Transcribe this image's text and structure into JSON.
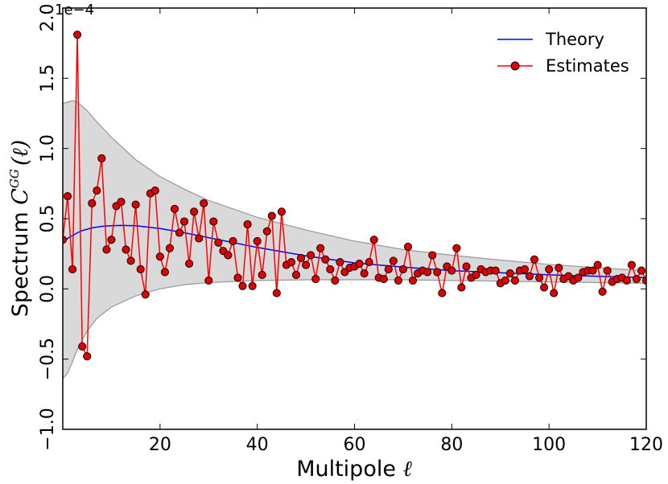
{
  "chart_data": {
    "type": "line",
    "title": "",
    "xlabel": "Multipole ℓ",
    "xlabel_text": "Multipole",
    "xlabel_symbol": "ℓ",
    "ylabel": "Spectrum C^{GG}(ℓ)",
    "ylabel_text": "Spectrum",
    "ylabel_symbol": "C",
    "ylabel_superscript": "GG",
    "ylabel_arg": "(ℓ)",
    "y_offset_label": "1e−4",
    "xlim": [
      0,
      120
    ],
    "ylim": [
      -1.0,
      2.0
    ],
    "xticks": [
      20,
      40,
      60,
      80,
      100,
      120
    ],
    "xtick_labels": [
      "20",
      "40",
      "60",
      "80",
      "100",
      "120"
    ],
    "yticks": [
      -1.0,
      -0.5,
      0.0,
      0.5,
      1.0,
      1.5,
      2.0
    ],
    "ytick_labels": [
      "−1.0",
      "−0.5",
      "0.0",
      "0.5",
      "1.0",
      "1.5",
      "2.0"
    ],
    "legend": {
      "location": "top-right",
      "entries": [
        "Theory",
        "Estimates"
      ]
    },
    "theory": {
      "name": "Theory",
      "color": "#0000ff",
      "x": [
        0,
        1,
        2,
        3,
        4,
        5,
        6,
        7,
        8,
        10,
        12,
        15,
        20,
        25,
        30,
        40,
        50,
        60,
        70,
        80,
        90,
        100,
        110,
        120
      ],
      "y": [
        0.33,
        0.36,
        0.38,
        0.4,
        0.415,
        0.425,
        0.435,
        0.44,
        0.445,
        0.45,
        0.452,
        0.45,
        0.43,
        0.4,
        0.365,
        0.295,
        0.235,
        0.185,
        0.155,
        0.13,
        0.115,
        0.1,
        0.09,
        0.08
      ]
    },
    "band": {
      "name": "uncertainty band",
      "fill": "#d9d9d9",
      "edge": "#999999",
      "x": [
        0,
        1,
        2,
        3,
        5,
        7,
        10,
        15,
        20,
        25,
        30,
        40,
        50,
        60,
        70,
        80,
        90,
        100,
        110,
        120
      ],
      "upper": [
        1.32,
        1.33,
        1.34,
        1.33,
        1.27,
        1.19,
        1.08,
        0.92,
        0.8,
        0.71,
        0.63,
        0.51,
        0.42,
        0.34,
        0.28,
        0.24,
        0.205,
        0.175,
        0.15,
        0.13
      ],
      "lower": [
        -0.64,
        -0.6,
        -0.52,
        -0.43,
        -0.3,
        -0.21,
        -0.13,
        -0.05,
        0.0,
        0.03,
        0.045,
        0.06,
        0.065,
        0.065,
        0.065,
        0.06,
        0.055,
        0.05,
        0.045,
        0.04
      ]
    },
    "estimates": {
      "name": "Estimates",
      "color": "#ff0000",
      "marker_fill": "#dd0000",
      "x": [
        0,
        1,
        2,
        3,
        4,
        5,
        6,
        7,
        8,
        9,
        10,
        11,
        12,
        13,
        14,
        15,
        16,
        17,
        18,
        19,
        20,
        21,
        22,
        23,
        24,
        25,
        26,
        27,
        28,
        29,
        30,
        31,
        32,
        33,
        34,
        35,
        36,
        37,
        38,
        39,
        40,
        41,
        42,
        43,
        44,
        45,
        46,
        47,
        48,
        49,
        50,
        51,
        52,
        53,
        54,
        55,
        56,
        57,
        58,
        59,
        60,
        61,
        62,
        63,
        64,
        65,
        66,
        67,
        68,
        69,
        70,
        71,
        72,
        73,
        74,
        75,
        76,
        77,
        78,
        79,
        80,
        81,
        82,
        83,
        84,
        85,
        86,
        87,
        88,
        89,
        90,
        91,
        92,
        93,
        94,
        95,
        96,
        97,
        98,
        99,
        100,
        101,
        102,
        103,
        104,
        105,
        106,
        107,
        108,
        109,
        110,
        111,
        112,
        113,
        114,
        115,
        116,
        117,
        118,
        119,
        120
      ],
      "y": [
        0.35,
        0.66,
        0.14,
        1.81,
        -0.41,
        -0.48,
        0.61,
        0.7,
        0.93,
        0.28,
        0.35,
        0.59,
        0.62,
        0.28,
        0.2,
        0.6,
        0.14,
        -0.04,
        0.68,
        0.7,
        0.23,
        0.12,
        0.29,
        0.57,
        0.4,
        0.48,
        0.18,
        0.55,
        0.36,
        0.61,
        0.06,
        0.48,
        0.33,
        0.27,
        0.24,
        0.34,
        0.08,
        0.02,
        0.46,
        0.02,
        0.34,
        0.1,
        0.41,
        0.52,
        -0.03,
        0.55,
        0.17,
        0.19,
        0.1,
        0.22,
        0.17,
        0.24,
        0.07,
        0.29,
        0.21,
        0.14,
        0.06,
        0.19,
        0.12,
        0.15,
        0.16,
        0.18,
        0.11,
        0.19,
        0.35,
        0.08,
        0.07,
        0.14,
        0.2,
        0.06,
        0.14,
        0.3,
        0.06,
        0.11,
        0.13,
        0.12,
        0.24,
        0.12,
        -0.03,
        0.16,
        0.13,
        0.29,
        0.01,
        0.16,
        0.08,
        0.1,
        0.14,
        0.12,
        0.13,
        0.13,
        0.04,
        0.06,
        0.11,
        0.06,
        0.13,
        0.14,
        0.09,
        0.21,
        0.08,
        0.01,
        0.14,
        -0.03,
        0.15,
        0.07,
        0.09,
        0.06,
        0.08,
        0.12,
        0.13,
        0.13,
        0.17,
        -0.02,
        0.13,
        0.05,
        0.07,
        0.08,
        0.06,
        0.17,
        0.07,
        0.13,
        0.06
      ]
    }
  }
}
